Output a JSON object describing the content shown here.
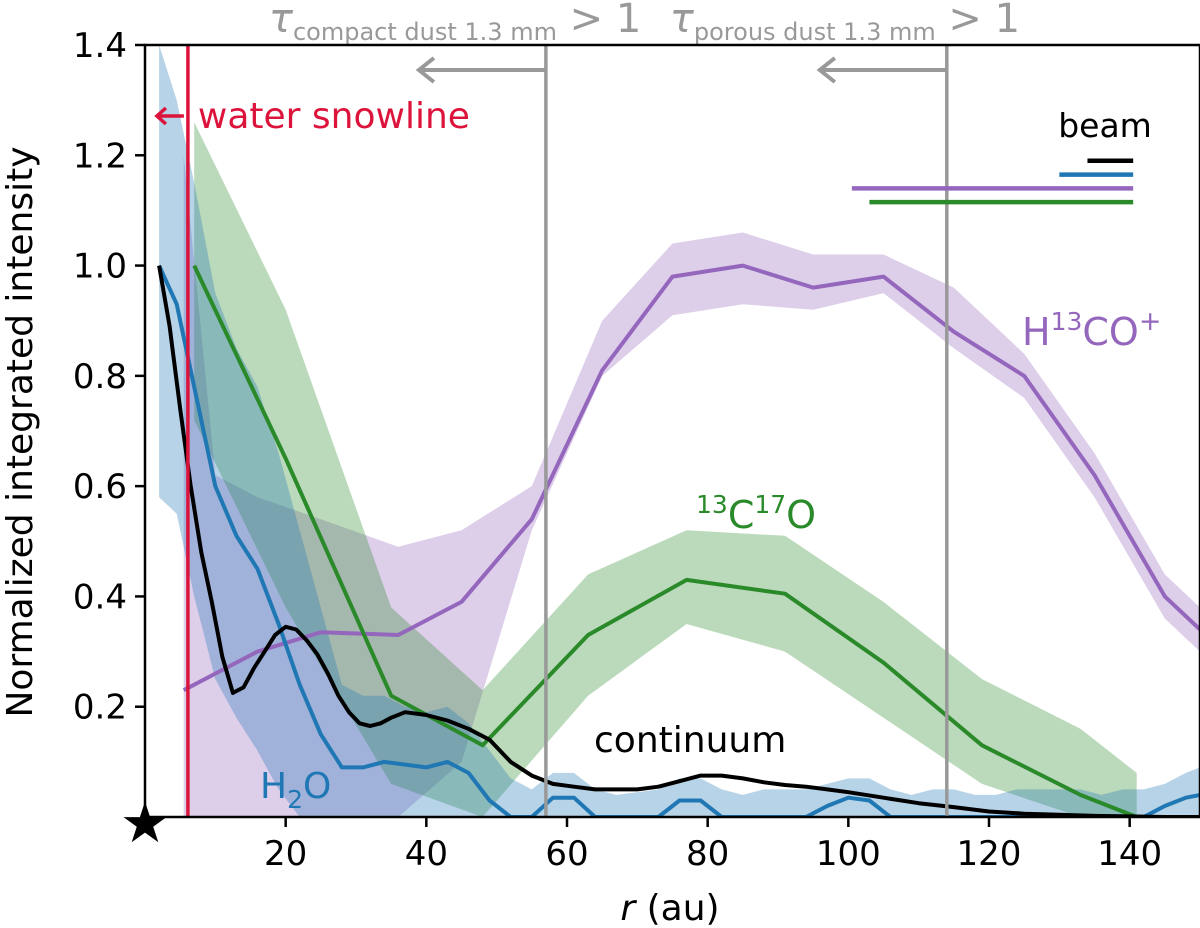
{
  "chart_data": {
    "type": "line",
    "xlabel_italic": "r",
    "xlabel_rest": " (au)",
    "ylabel": "Normalized integrated intensity",
    "xlim": [
      0,
      150
    ],
    "ylim": [
      0,
      1.4
    ],
    "xticks": [
      20,
      40,
      60,
      80,
      100,
      120,
      140
    ],
    "yticks": [
      0.2,
      0.4,
      0.6,
      0.8,
      1.0,
      1.2,
      1.4
    ],
    "ytick_labels": [
      "0.2",
      "0.4",
      "0.6",
      "0.8",
      "1.0",
      "1.2",
      "1.4"
    ],
    "series": [
      {
        "key": "h13co",
        "name": "H13CO+",
        "color": "#9467bd",
        "x": [
          5.5,
          10,
          16,
          25,
          36,
          45,
          55,
          65,
          75,
          85,
          95,
          105,
          115,
          125,
          135,
          145,
          150
        ],
        "y": [
          0.23,
          0.26,
          0.3,
          0.335,
          0.33,
          0.39,
          0.54,
          0.81,
          0.98,
          1.0,
          0.96,
          0.98,
          0.88,
          0.8,
          0.62,
          0.4,
          0.34
        ],
        "lower": [
          0.0,
          0.0,
          0.0,
          0.0,
          0.0,
          0.1,
          0.52,
          0.8,
          0.91,
          0.93,
          0.92,
          0.95,
          0.85,
          0.76,
          0.58,
          0.36,
          0.3
        ],
        "upper": [
          1.2,
          0.62,
          0.58,
          0.54,
          0.49,
          0.52,
          0.6,
          0.9,
          1.04,
          1.06,
          1.02,
          1.02,
          0.96,
          0.84,
          0.66,
          0.44,
          0.38
        ]
      },
      {
        "key": "c17o",
        "name": "13C17O",
        "color": "#2a8a2a",
        "x": [
          7,
          20,
          35,
          48,
          63,
          77,
          91,
          105,
          119,
          133,
          141
        ],
        "y": [
          1.0,
          0.65,
          0.22,
          0.13,
          0.33,
          0.43,
          0.405,
          0.28,
          0.13,
          0.04,
          0.0
        ],
        "lower": [
          0.72,
          0.38,
          0.06,
          0.0,
          0.22,
          0.35,
          0.3,
          0.18,
          0.06,
          0.0,
          0.0
        ],
        "upper": [
          1.26,
          0.92,
          0.38,
          0.23,
          0.44,
          0.52,
          0.51,
          0.39,
          0.25,
          0.16,
          0.08
        ]
      },
      {
        "key": "h2o",
        "name": "H2O",
        "color": "#1f77b4",
        "x": [
          2,
          4.5,
          7,
          10,
          13,
          16,
          19,
          22,
          25,
          28,
          31,
          34,
          37,
          40,
          43,
          46,
          49,
          52,
          55,
          58,
          61,
          64,
          67,
          70,
          73,
          76,
          79,
          82,
          85,
          88,
          91,
          94,
          97,
          100,
          103,
          106,
          109,
          112,
          115,
          118,
          121,
          124,
          127,
          130,
          133,
          136,
          139,
          142,
          145,
          148,
          150
        ],
        "y": [
          1.0,
          0.93,
          0.78,
          0.6,
          0.51,
          0.45,
          0.35,
          0.24,
          0.15,
          0.09,
          0.09,
          0.1,
          0.095,
          0.09,
          0.1,
          0.08,
          0.03,
          0.0,
          0.0,
          0.035,
          0.035,
          0.0,
          0.0,
          0.0,
          0.0,
          0.03,
          0.03,
          0.0,
          0.0,
          0.0,
          0.0,
          0.0,
          0.02,
          0.035,
          0.03,
          0.0,
          0.0,
          0.0,
          0.0,
          0.0,
          0.0,
          0.0,
          0.0,
          0.0,
          0.0,
          0.0,
          0.0,
          0.0,
          0.02,
          0.035,
          0.04
        ],
        "lower": [
          0.58,
          0.55,
          0.4,
          0.25,
          0.18,
          0.12,
          0.05,
          0.0,
          0.0,
          0.0,
          0.0,
          0.0,
          0.0,
          0.0,
          0.0,
          0.0,
          0.0,
          0.0,
          0.0,
          0.0,
          0.0,
          0.0,
          0.0,
          0.0,
          0.0,
          0.0,
          0.0,
          0.0,
          0.0,
          0.0,
          0.0,
          0.0,
          0.0,
          0.0,
          0.0,
          0.0,
          0.0,
          0.0,
          0.0,
          0.0,
          0.0,
          0.0,
          0.0,
          0.0,
          0.0,
          0.0,
          0.0,
          0.0,
          0.0,
          0.0,
          0.0
        ],
        "upper": [
          1.45,
          1.3,
          1.15,
          0.95,
          0.85,
          0.78,
          0.66,
          0.52,
          0.38,
          0.24,
          0.22,
          0.22,
          0.2,
          0.19,
          0.2,
          0.17,
          0.12,
          0.07,
          0.05,
          0.08,
          0.08,
          0.05,
          0.04,
          0.045,
          0.05,
          0.07,
          0.07,
          0.05,
          0.04,
          0.05,
          0.05,
          0.05,
          0.06,
          0.07,
          0.07,
          0.05,
          0.04,
          0.05,
          0.05,
          0.04,
          0.04,
          0.05,
          0.05,
          0.05,
          0.05,
          0.04,
          0.05,
          0.05,
          0.06,
          0.08,
          0.09
        ]
      },
      {
        "key": "continuum",
        "name": "continuum",
        "color": "#000000",
        "x": [
          2,
          3.5,
          5,
          6.5,
          8,
          9.5,
          11,
          12.5,
          14,
          15.5,
          17,
          18.5,
          20,
          21.5,
          23,
          24.5,
          26,
          27.5,
          29,
          30.5,
          32,
          33.5,
          35,
          37,
          40,
          43,
          46,
          49,
          52,
          55,
          58,
          61,
          64,
          67,
          70,
          73,
          76,
          79,
          82,
          85,
          88,
          91,
          94,
          97,
          100,
          105,
          110,
          115,
          120,
          125,
          130,
          135,
          140,
          145,
          150
        ],
        "y": [
          1.0,
          0.89,
          0.74,
          0.6,
          0.48,
          0.39,
          0.29,
          0.225,
          0.235,
          0.27,
          0.3,
          0.33,
          0.345,
          0.34,
          0.32,
          0.295,
          0.26,
          0.22,
          0.19,
          0.17,
          0.165,
          0.17,
          0.18,
          0.19,
          0.185,
          0.175,
          0.16,
          0.14,
          0.1,
          0.075,
          0.06,
          0.055,
          0.05,
          0.05,
          0.05,
          0.055,
          0.065,
          0.075,
          0.075,
          0.07,
          0.063,
          0.058,
          0.055,
          0.05,
          0.045,
          0.035,
          0.025,
          0.018,
          0.01,
          0.006,
          0.004,
          0.002,
          0.001,
          0.0,
          0.0
        ]
      }
    ],
    "vlines": [
      {
        "name": "water-snowline",
        "x": 6.1,
        "color": "#dc143c",
        "text": "water snowline",
        "arrow": "left"
      },
      {
        "name": "compact-dust",
        "x": 57,
        "color": "#999999",
        "text": "τ",
        "sub": "compact dust 1.3 mm",
        "tail": " > 1",
        "arrow": "left"
      },
      {
        "name": "porous-dust",
        "x": 114,
        "color": "#999999",
        "text": "τ",
        "sub": "porous dust 1.3 mm",
        "tail": " > 1",
        "arrow": "left"
      }
    ],
    "beam": {
      "label": "beam",
      "bars": [
        {
          "name": "continuum",
          "color": "#000000",
          "x0": 134,
          "x1": 140.5,
          "y": 1.19
        },
        {
          "name": "h2o",
          "color": "#1f77b4",
          "x0": 130,
          "x1": 140.5,
          "y": 1.165
        },
        {
          "name": "h13co",
          "color": "#9467bd",
          "x0": 100.5,
          "x1": 140.5,
          "y": 1.14
        },
        {
          "name": "c17o",
          "color": "#2a8a2a",
          "x0": 103,
          "x1": 140.5,
          "y": 1.115
        }
      ]
    },
    "series_labels": [
      {
        "key": "h13co",
        "base": "H",
        "sup1": "13",
        "mid": "CO",
        "sup2": "+",
        "color": "#9467bd"
      },
      {
        "key": "c17o",
        "pre_sup": "13",
        "base": "C",
        "sup1": "17",
        "mid": "O",
        "color": "#2a8a2a"
      },
      {
        "key": "h2o",
        "base": "H",
        "sub": "2",
        "mid": "O",
        "color": "#1f77b4"
      },
      {
        "key": "continuum",
        "base": "continuum",
        "color": "#000000"
      }
    ],
    "star_marker": {
      "x": 0,
      "y": 0,
      "symbol": "★"
    }
  }
}
